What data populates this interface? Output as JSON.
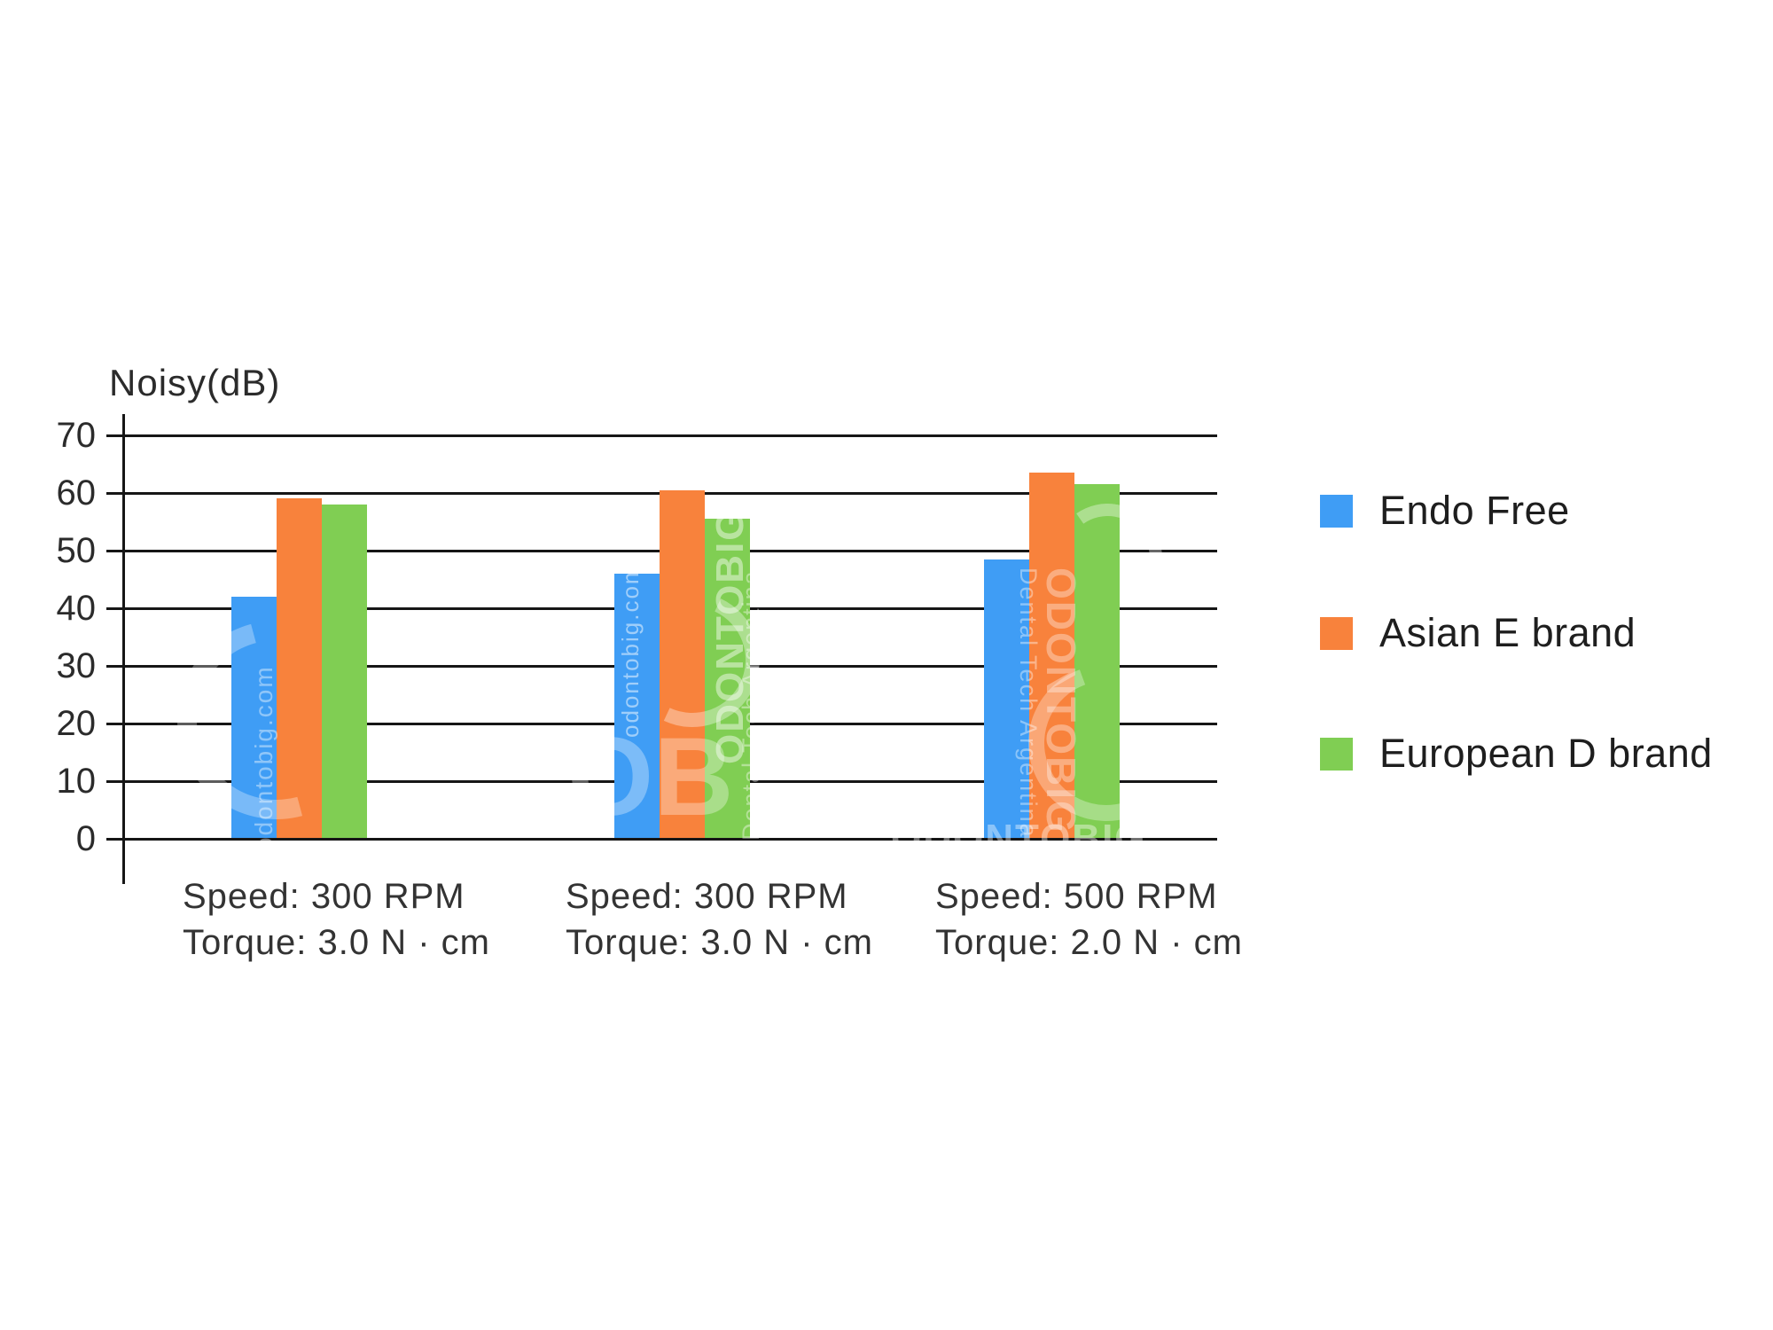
{
  "chart_data": {
    "type": "bar",
    "title": "Noisy(dB)",
    "ylabel": "Noisy(dB)",
    "xlabel": "",
    "ylim": [
      0,
      70
    ],
    "yticks": [
      0,
      10,
      20,
      30,
      40,
      50,
      60,
      70
    ],
    "grid": true,
    "legend_position": "right",
    "categories": [
      {
        "line1": "Speed: 300 RPM",
        "line2": "Torque: 3.0 N · cm"
      },
      {
        "line1": "Speed: 300 RPM",
        "line2": "Torque: 3.0 N · cm"
      },
      {
        "line1": "Speed: 500 RPM",
        "line2": "Torque: 2.0 N · cm"
      }
    ],
    "series": [
      {
        "name": "Endo Free",
        "color": "#3F9DF5",
        "values": [
          42,
          46,
          48.5
        ]
      },
      {
        "name": "Asian E brand",
        "color": "#F8823C",
        "values": [
          59,
          60.5,
          63.5
        ]
      },
      {
        "name": "European D brand",
        "color": "#80CE53",
        "values": [
          58,
          55.5,
          61.5
        ]
      }
    ]
  },
  "watermarks": {
    "site": "odontobig.com",
    "brand": "ODONTOBIG",
    "tagline": "Dental Tech Argentina",
    "logo": "OB"
  }
}
